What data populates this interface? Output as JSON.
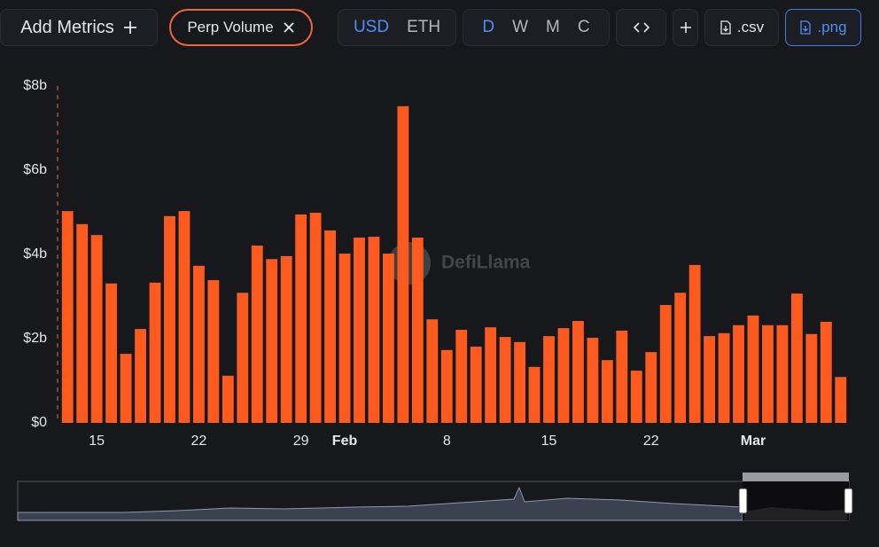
{
  "toolbar": {
    "add_metrics": "Add Metrics",
    "denominations": [
      "USD",
      "ETH"
    ],
    "periods": [
      "D",
      "W",
      "M",
      "C"
    ],
    "csv": ".csv",
    "png": ".png"
  },
  "watermark": "DefiLlama",
  "chart_data": {
    "type": "bar",
    "categories": [
      null,
      null,
      "15",
      null,
      null,
      null,
      null,
      null,
      null,
      "22",
      null,
      null,
      null,
      null,
      null,
      null,
      "29",
      null,
      null,
      "Feb",
      null,
      null,
      null,
      null,
      null,
      null,
      "8",
      null,
      null,
      null,
      null,
      null,
      null,
      "15",
      null,
      null,
      null,
      null,
      null,
      null,
      "22",
      null,
      null,
      null,
      null,
      null,
      null,
      "Mar",
      null,
      null,
      null,
      null,
      null,
      null
    ],
    "series": [
      {
        "name": "Perp Volume",
        "color": "#fc5a1f",
        "values": [
          5.03,
          4.72,
          4.46,
          3.31,
          1.64,
          2.23,
          3.33,
          4.91,
          5.03,
          3.73,
          3.39,
          1.12,
          3.09,
          4.21,
          3.89,
          3.96,
          4.95,
          4.99,
          4.57,
          4.02,
          4.4,
          4.42,
          4.02,
          7.52,
          4.4,
          2.46,
          1.73,
          2.21,
          1.81,
          2.27,
          2.04,
          1.92,
          1.33,
          2.06,
          2.25,
          2.42,
          2.02,
          1.49,
          2.19,
          1.24,
          1.68,
          2.8,
          3.09,
          3.75,
          2.06,
          2.13,
          2.32,
          2.55,
          2.32,
          2.32,
          3.07,
          2.11,
          2.4,
          1.09
        ]
      }
    ],
    "ylim": [
      0,
      8
    ],
    "yticks": [
      {
        "value": 0,
        "label": "$0"
      },
      {
        "value": 2,
        "label": "$2b"
      },
      {
        "value": 4,
        "label": "$4b"
      },
      {
        "value": 6,
        "label": "$6b"
      },
      {
        "value": 8,
        "label": "$8b"
      }
    ],
    "grid": false
  }
}
